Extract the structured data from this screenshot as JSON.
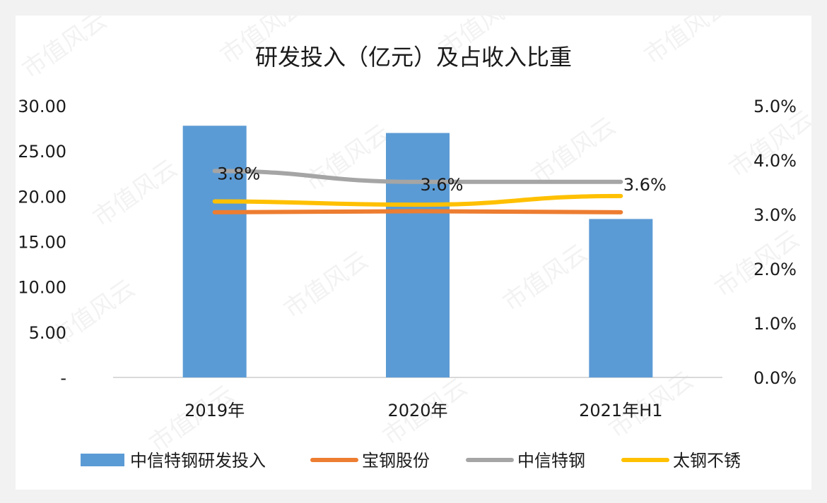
{
  "chart_data": {
    "type": "bar",
    "title": "研发投入（亿元）及占收入比重",
    "categories": [
      "2019年",
      "2020年",
      "2021年H1"
    ],
    "y_left": {
      "range": [
        0,
        30
      ],
      "ticks": [
        "-",
        "5.00",
        "10.00",
        "15.00",
        "20.00",
        "25.00",
        "30.00"
      ],
      "tick_values": [
        0,
        5,
        10,
        15,
        20,
        25,
        30
      ]
    },
    "y_right": {
      "range": [
        0,
        0.05
      ],
      "ticks": [
        "0.0%",
        "1.0%",
        "2.0%",
        "3.0%",
        "4.0%",
        "5.0%"
      ],
      "tick_values": [
        0,
        0.01,
        0.02,
        0.03,
        0.04,
        0.05
      ]
    },
    "series": [
      {
        "name": "中信特钢研发投入",
        "kind": "bar",
        "axis": "left",
        "color": "#5b9bd5",
        "values": [
          27.8,
          27.0,
          17.5
        ]
      },
      {
        "name": "宝钢股份",
        "kind": "line",
        "axis": "right",
        "color": "#ed7d31",
        "values": [
          0.0304,
          0.0306,
          0.0304
        ]
      },
      {
        "name": "中信特钢",
        "kind": "line",
        "axis": "right",
        "color": "#a5a5a5",
        "values": [
          0.038,
          0.036,
          0.036
        ],
        "labels": [
          "3.8%",
          "3.6%",
          "3.6%"
        ]
      },
      {
        "name": "太钢不锈",
        "kind": "line",
        "axis": "right",
        "color": "#ffc000",
        "values": [
          0.0324,
          0.0318,
          0.0334
        ]
      }
    ],
    "legend_position": "bottom",
    "grid": false
  },
  "watermark": "市值风云"
}
